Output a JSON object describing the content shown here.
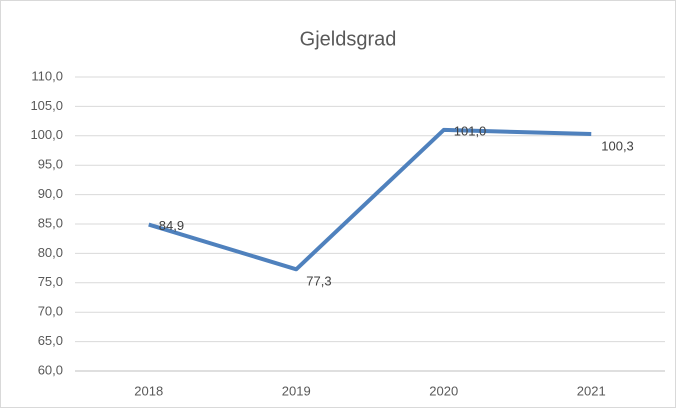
{
  "chart_data": {
    "type": "line",
    "title": "Gjeldsgrad",
    "categories": [
      "2018",
      "2019",
      "2020",
      "2021"
    ],
    "series": [
      {
        "name": "Gjeldsgrad",
        "color": "#4f81bd",
        "values": [
          84.9,
          77.3,
          101.0,
          100.3
        ],
        "value_labels": [
          "84,9",
          "77,3",
          "101,0",
          "100,3"
        ]
      }
    ],
    "ylim": [
      60,
      110
    ],
    "yticks": [
      {
        "value": 60,
        "label": "60,0"
      },
      {
        "value": 65,
        "label": "65,0"
      },
      {
        "value": 70,
        "label": "70,0"
      },
      {
        "value": 75,
        "label": "75,0"
      },
      {
        "value": 80,
        "label": "80,0"
      },
      {
        "value": 85,
        "label": "85,0"
      },
      {
        "value": 90,
        "label": "90,0"
      },
      {
        "value": 95,
        "label": "95,0"
      },
      {
        "value": 100,
        "label": "100,0"
      },
      {
        "value": 105,
        "label": "105,0"
      },
      {
        "value": 110,
        "label": "110,0"
      }
    ],
    "grid": true
  }
}
